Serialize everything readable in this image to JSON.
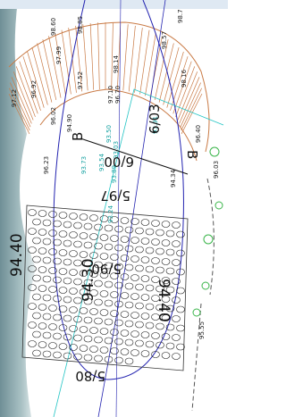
{
  "labels": [
    "98.60",
    "98.85",
    "97.99",
    "98.14",
    "98.57",
    "98.7",
    "97.52",
    "96.92",
    "97.12",
    "97.10",
    "96.70",
    "98.16",
    "96.02",
    "94.90",
    "96.23",
    "93.73",
    "93.54",
    "93.50",
    "93.03",
    "93.89",
    "93.24",
    "93.91",
    "94.34",
    "96.03",
    "96.40",
    "95.55"
  ],
  "markers": [
    "B",
    "B"
  ],
  "sections": [
    "6/03",
    "6/00",
    "5/97",
    "5/90",
    "5/80"
  ],
  "levels": [
    "94.40",
    "94.30",
    "94.40"
  ]
}
